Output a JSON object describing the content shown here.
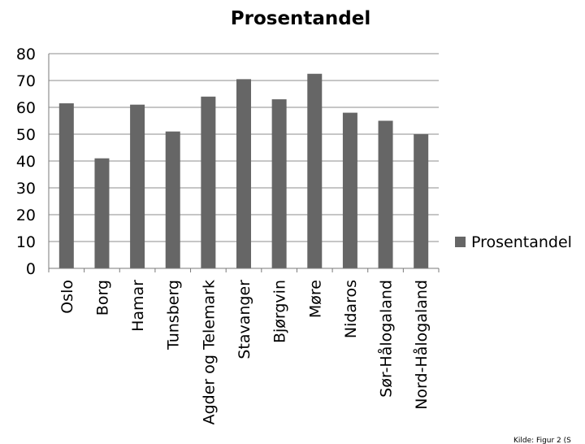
{
  "chart_data": {
    "type": "bar",
    "title": "Prosentandel",
    "categories": [
      "Oslo",
      "Borg",
      "Hamar",
      "Tunsberg",
      "Agder og Telemark",
      "Stavanger",
      "Bjørgvin",
      "Møre",
      "Nidaros",
      "Sør-Hålogaland",
      "Nord-Hålogaland"
    ],
    "series": [
      {
        "name": "Prosentandel",
        "values": [
          61.5,
          41,
          61,
          51,
          64,
          70.5,
          63,
          72.5,
          58,
          55,
          50
        ],
        "color": "#666666"
      }
    ],
    "ylim": [
      0,
      80
    ],
    "yticks": [
      0,
      10,
      20,
      30,
      40,
      50,
      60,
      70,
      80
    ],
    "grid": true,
    "legend": "right"
  },
  "source": {
    "text": "Kilde: Figur 2 (S"
  }
}
